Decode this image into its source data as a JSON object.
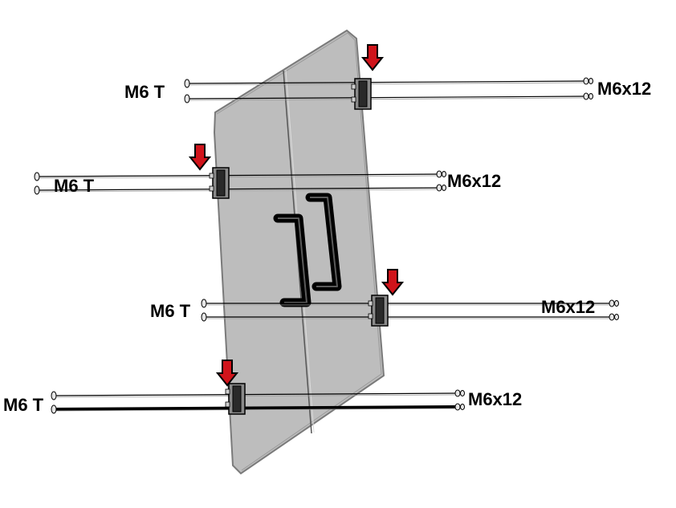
{
  "colors": {
    "panel_fill": "#bdbdbd",
    "panel_stroke": "#7a7a7a",
    "arrow_fill": "#d0141b",
    "arrow_stroke": "#000000",
    "handle": "#000000",
    "bolt_line": "#000000"
  },
  "icons": {
    "arrow": "down-arrow-icon",
    "t_bolt": "bolt-head-icon",
    "nut": "nut-icon",
    "hinge": "hinge-bracket-icon",
    "handle": "door-handle-icon"
  },
  "hinges": [
    {
      "t_bolt_label": "M6 T",
      "screw_label": "M6x12"
    },
    {
      "t_bolt_label": "M6 T",
      "screw_label": "M6x12"
    },
    {
      "t_bolt_label": "M6 T",
      "screw_label": "M6x12"
    },
    {
      "t_bolt_label": "M6 T",
      "screw_label": "M6x12"
    }
  ]
}
